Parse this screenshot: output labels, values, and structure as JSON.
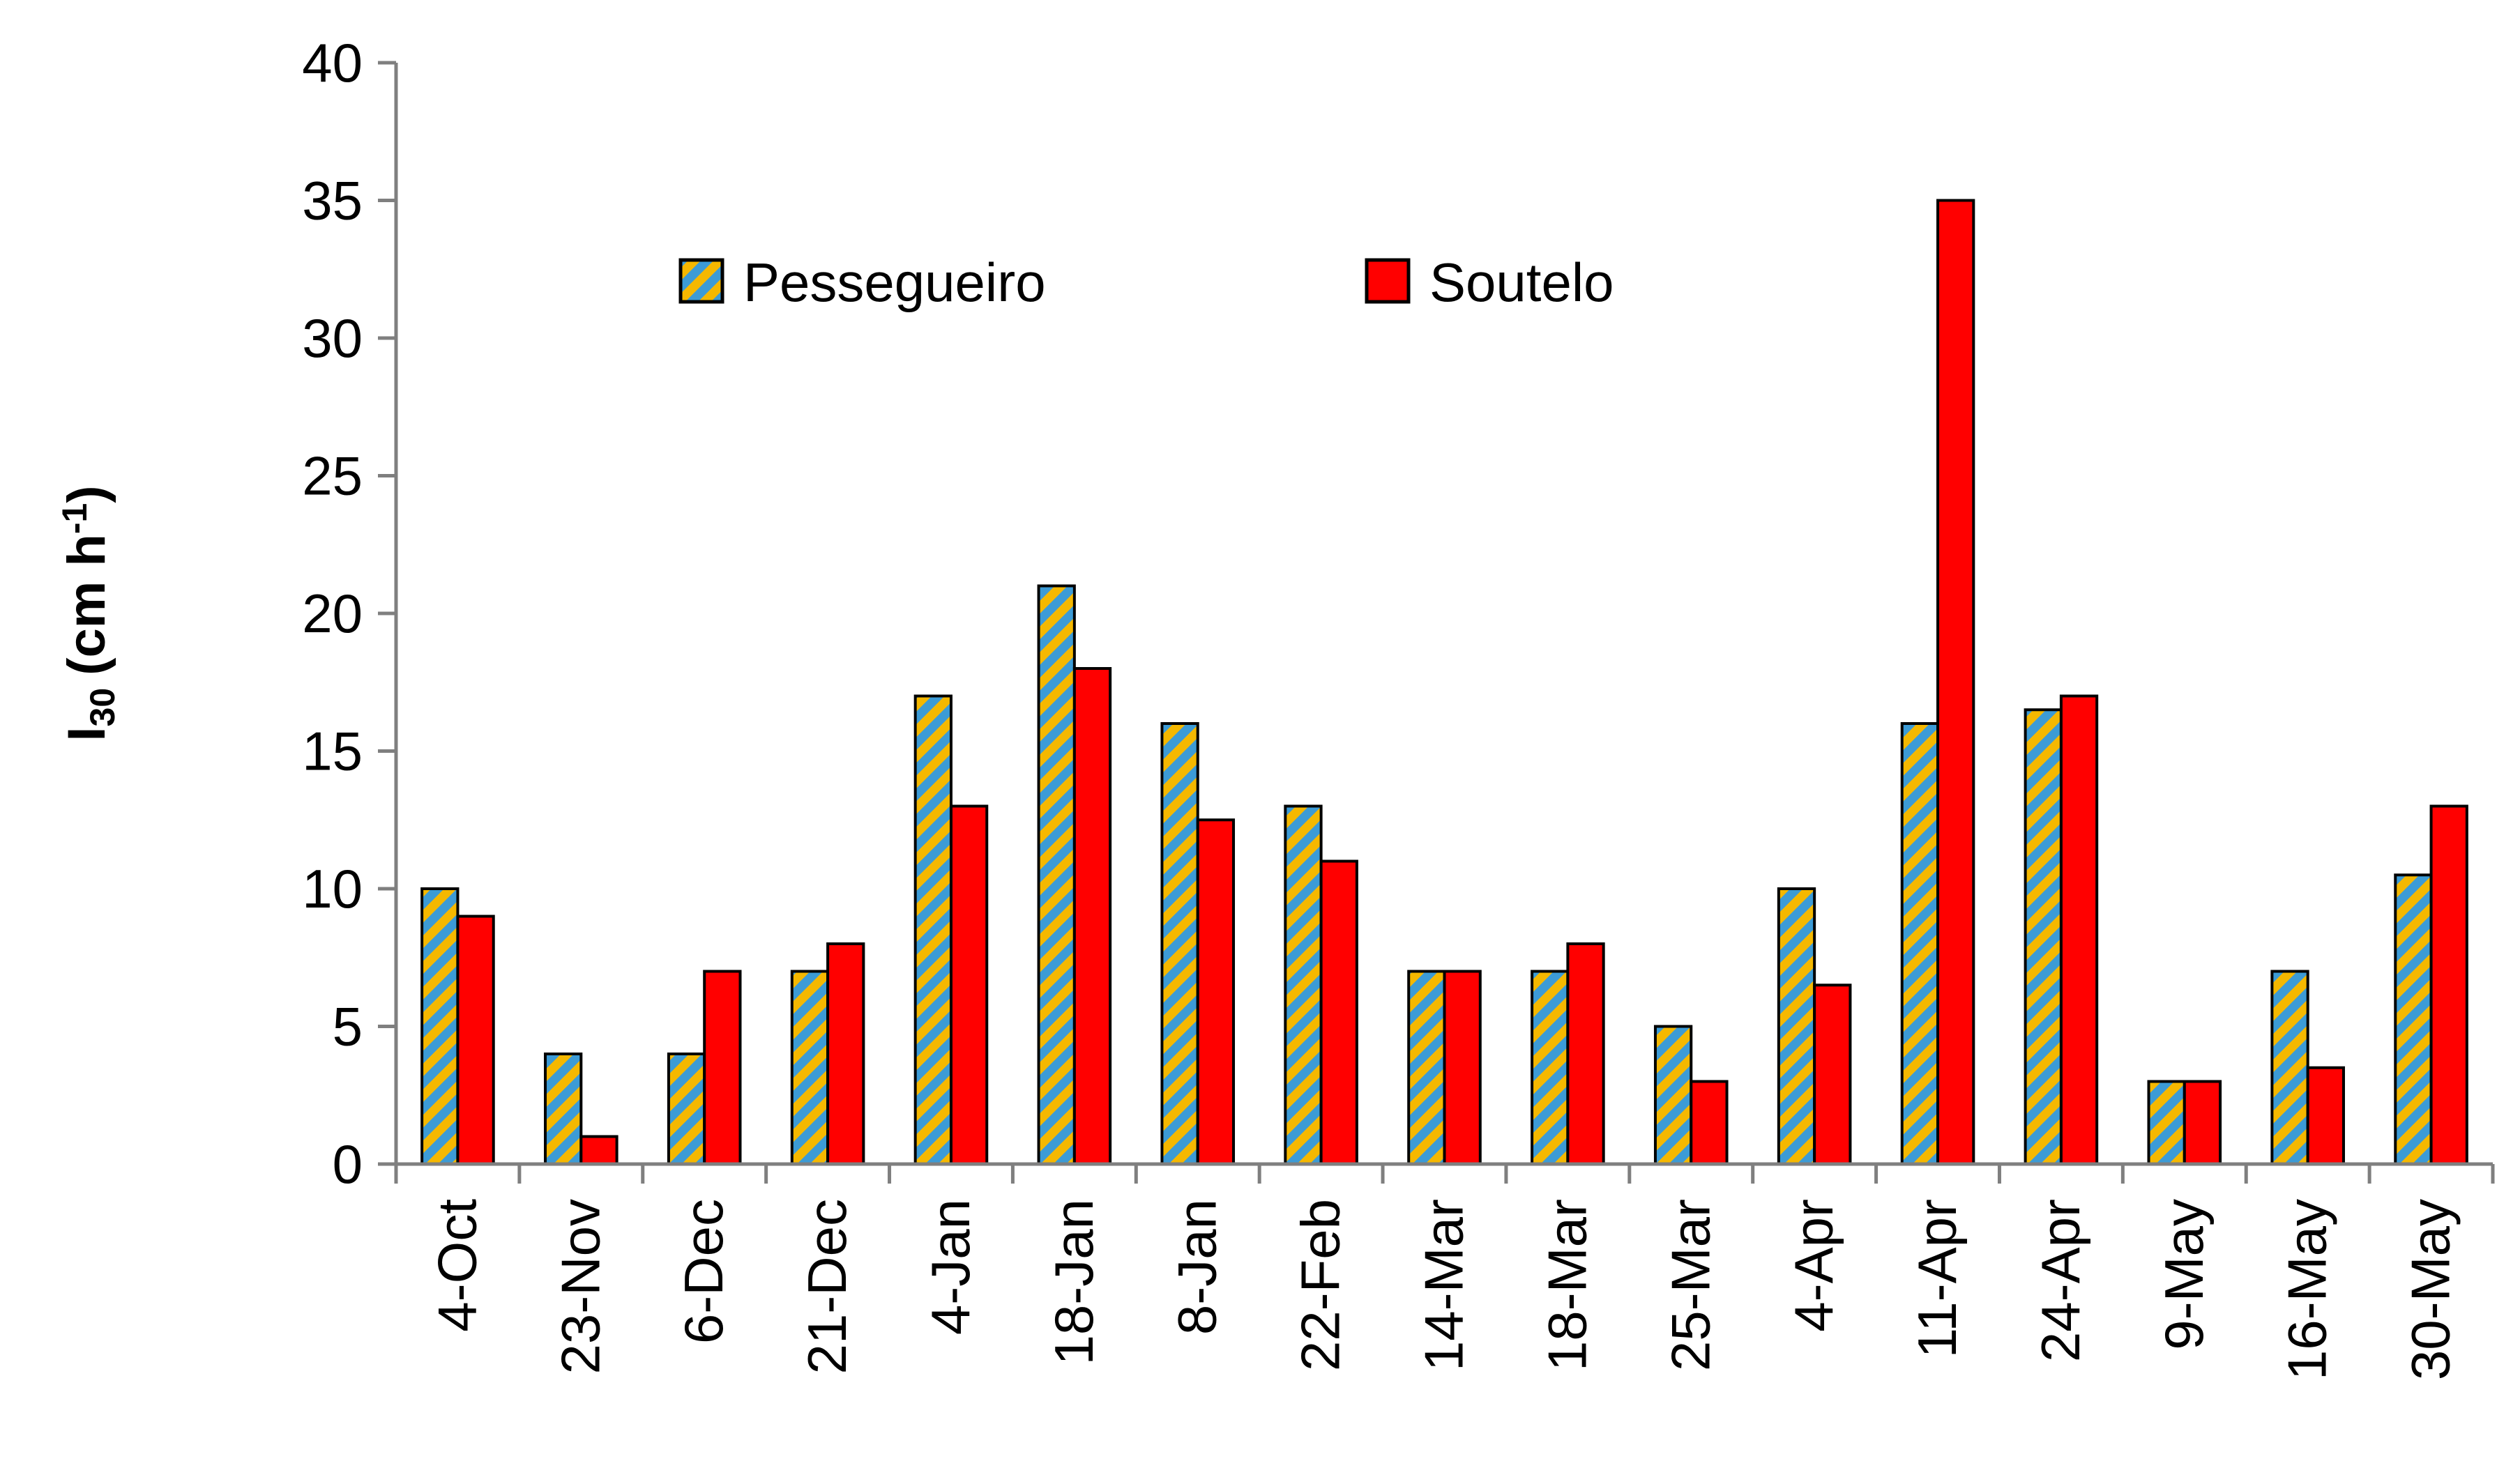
{
  "chart_data": {
    "type": "bar",
    "title": "",
    "xlabel": "",
    "ylabel": {
      "main": "I",
      "subscript": "30",
      "unit_prefix": "(cm h",
      "unit_superscript": "-1",
      "unit_suffix": ")"
    },
    "ylim": [
      0,
      40
    ],
    "yticks": [
      0,
      5,
      10,
      15,
      20,
      25,
      30,
      35,
      40
    ],
    "ytick_labels": [
      "0",
      "5",
      "10",
      "15",
      "20",
      "25",
      "30",
      "35",
      "40"
    ],
    "grid": false,
    "legend_position": "top-center",
    "categories": [
      "4-Oct",
      "23-Nov",
      "6-Dec",
      "21-Dec",
      "4-Jan",
      "18-Jan",
      "8-Jan",
      "22-Feb",
      "14-Mar",
      "18-Mar",
      "25-Mar",
      "4-Apr",
      "11-Apr",
      "24-Apr",
      "9-May",
      "16-May",
      "30-May"
    ],
    "series": [
      {
        "name": "Pessegueiro",
        "pattern": "diagonal-stripes",
        "colors": [
          "#3c9bd6",
          "#f5b800"
        ],
        "values": [
          10,
          4,
          4,
          7,
          17,
          21,
          16,
          13,
          7,
          7,
          5,
          10,
          16,
          16.5,
          3,
          7,
          10.5
        ]
      },
      {
        "name": "Soutelo",
        "color": "#ff0000",
        "values": [
          9,
          1,
          7,
          8,
          13,
          18,
          12.5,
          11,
          7,
          8,
          3,
          6.5,
          35,
          17,
          3,
          3.5,
          13
        ]
      }
    ]
  }
}
